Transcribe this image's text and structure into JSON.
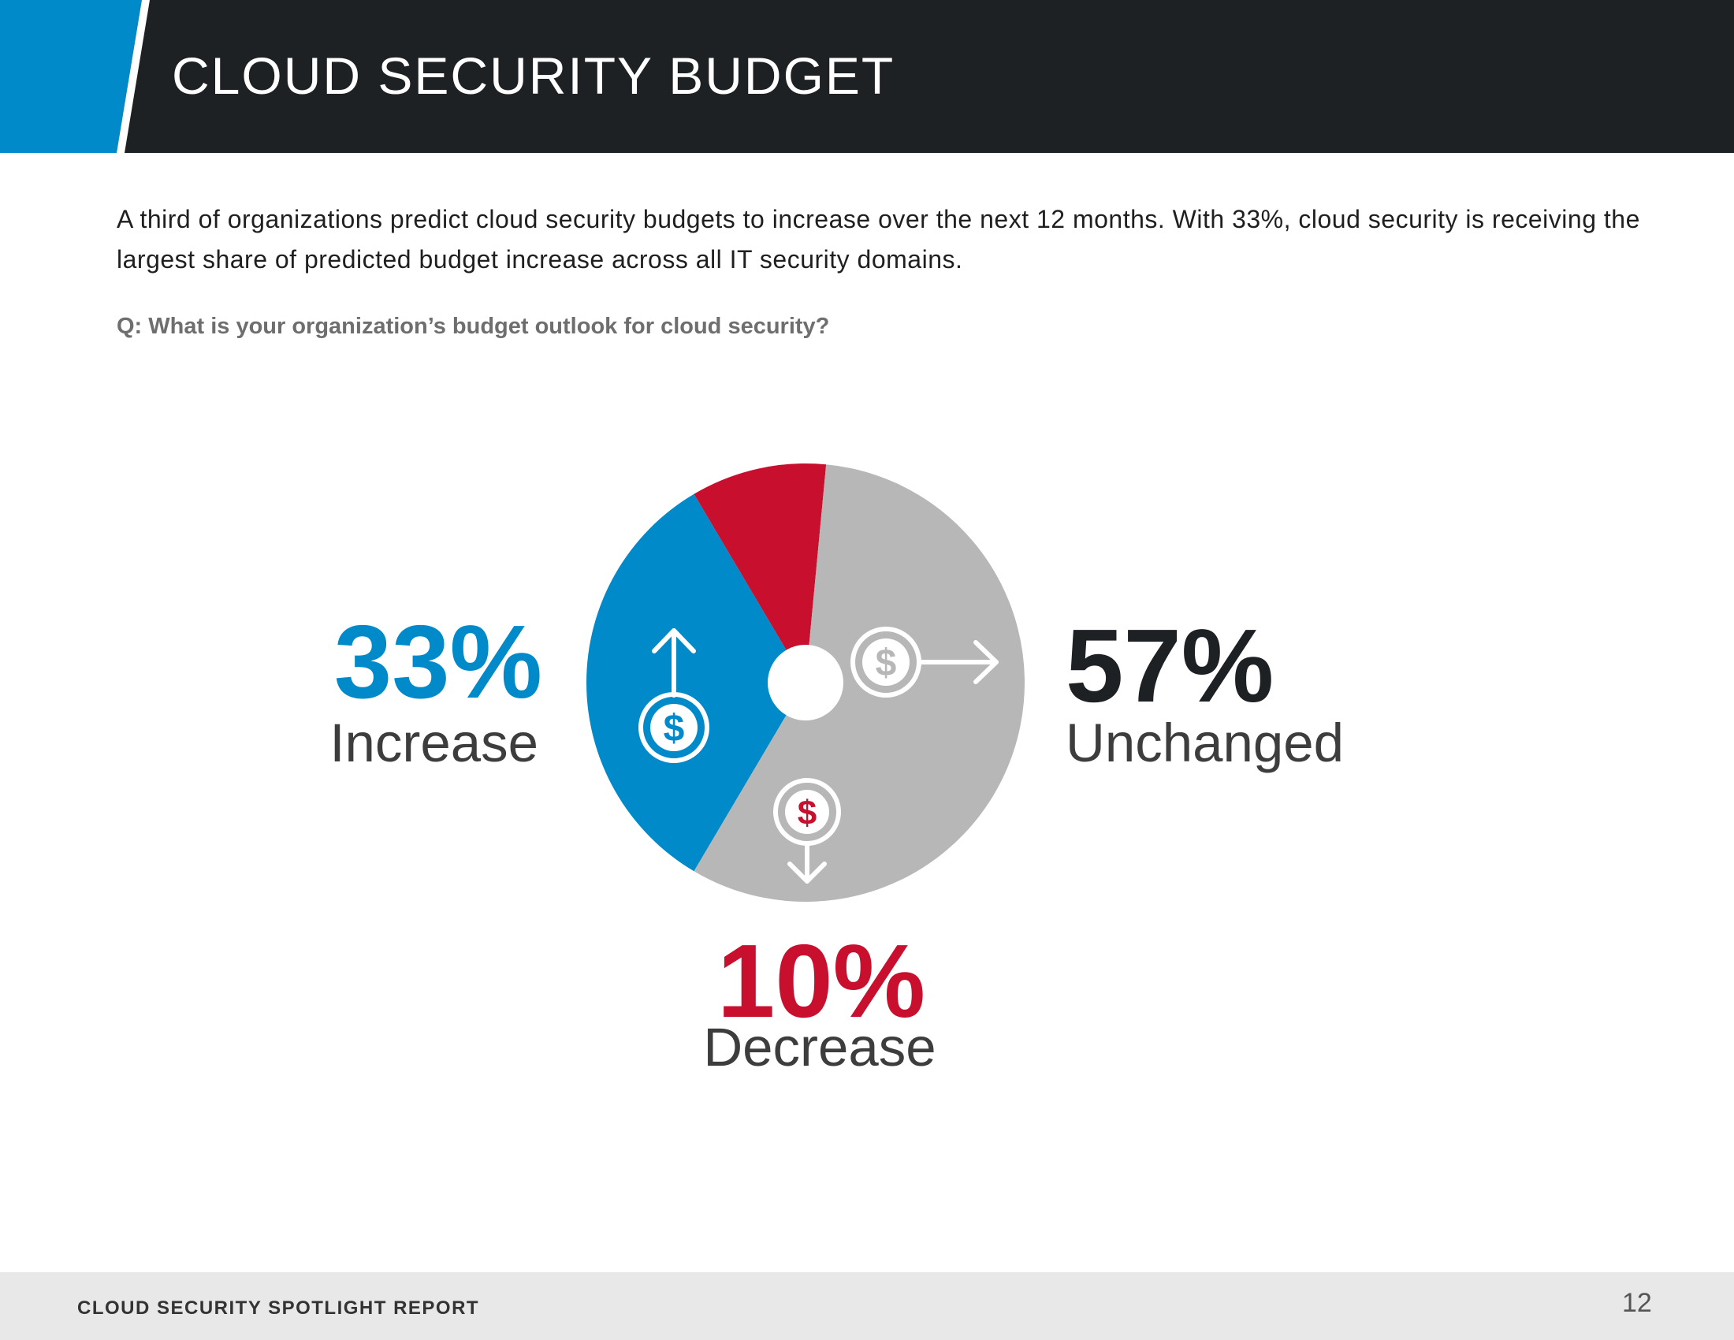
{
  "header": {
    "title": "CLOUD SECURITY BUDGET"
  },
  "intro": "A third of organizations predict cloud security budgets to increase over the next 12 months. With 33%, cloud security is receiving the largest share of predicted budget increase across all IT security domains.",
  "question": "Q: What is your organization’s budget outlook for cloud security?",
  "chart_data": {
    "type": "pie",
    "title": "",
    "slices": [
      {
        "label": "Increase",
        "value": 33,
        "display": "33%",
        "color": "#008ac9",
        "icon": "dollar-up-arrow-icon"
      },
      {
        "label": "Decrease",
        "value": 10,
        "display": "10%",
        "color": "#c8102e",
        "icon": "dollar-down-arrow-icon"
      },
      {
        "label": "Unchanged",
        "value": 57,
        "display": "57%",
        "color": "#b7b7b7",
        "icon": "dollar-right-arrow-icon"
      }
    ],
    "label_colors": {
      "Increase": "#008ac9",
      "Decrease": "#c8102e",
      "Unchanged": "#1e2124"
    }
  },
  "footer": {
    "report_title": "CLOUD SECURITY SPOTLIGHT REPORT",
    "page_number": "12"
  },
  "colors": {
    "banner": "#1e2124",
    "accent": "#008ac9"
  }
}
